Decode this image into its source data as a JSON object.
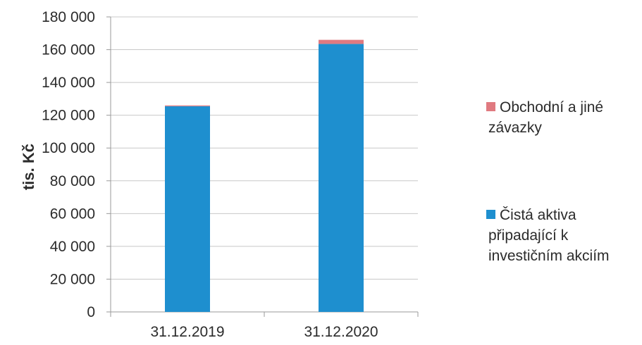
{
  "chart_data": {
    "type": "bar",
    "stacked": true,
    "categories": [
      "31.12.2019",
      "31.12.2020"
    ],
    "series": [
      {
        "name": "Čistá aktiva připadající k investičním akciím",
        "values": [
          125500,
          163500
        ],
        "color": "#1e8fcf"
      },
      {
        "name": "Obchodní a jiné závazky",
        "values": [
          500,
          2500
        ],
        "color": "#e07a80"
      }
    ],
    "ylabel": "tis. Kč",
    "ylim": [
      0,
      180000
    ],
    "yticks": [
      0,
      20000,
      40000,
      60000,
      80000,
      100000,
      120000,
      140000,
      160000,
      180000
    ],
    "ytick_labels": [
      "0",
      "20 000",
      "40 000",
      "60 000",
      "80 000",
      "100 000",
      "120 000",
      "140 000",
      "160 000",
      "180 000"
    ],
    "grid": true,
    "legend_position": "right",
    "legend": [
      {
        "lines": [
          "Obchodní a jiné",
          "závazky"
        ],
        "color": "#e07a80"
      },
      {
        "lines": [
          "Čistá aktiva",
          "připadající k",
          "investičním akciím"
        ],
        "color": "#1e8fcf"
      }
    ]
  }
}
